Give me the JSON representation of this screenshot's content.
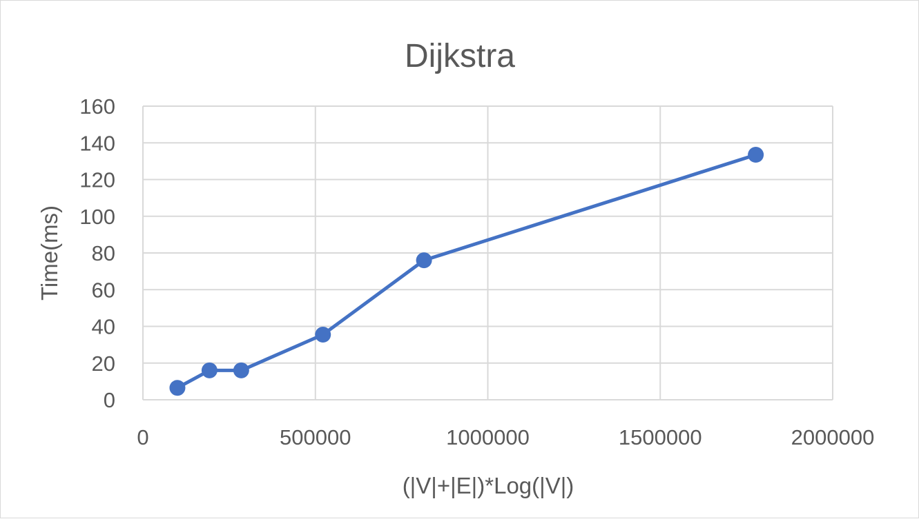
{
  "chart_data": {
    "type": "scatter",
    "title": "Dijkstra",
    "xlabel": "(|V|+|E|)*Log(|V|)",
    "ylabel": "Time(ms)",
    "xlim": [
      0,
      2000000
    ],
    "ylim": [
      0,
      160
    ],
    "x_ticks": [
      0,
      500000,
      1000000,
      1500000,
      2000000
    ],
    "y_ticks": [
      0,
      20,
      40,
      60,
      80,
      100,
      120,
      140,
      160
    ],
    "grid": true,
    "legend": "none",
    "line_color": "#4472c4",
    "series": [
      {
        "x": [
          100000,
          193000,
          285000,
          522000,
          815000,
          1777000
        ],
        "y": [
          6.5,
          16,
          16,
          35.5,
          76,
          133.5
        ]
      }
    ]
  }
}
